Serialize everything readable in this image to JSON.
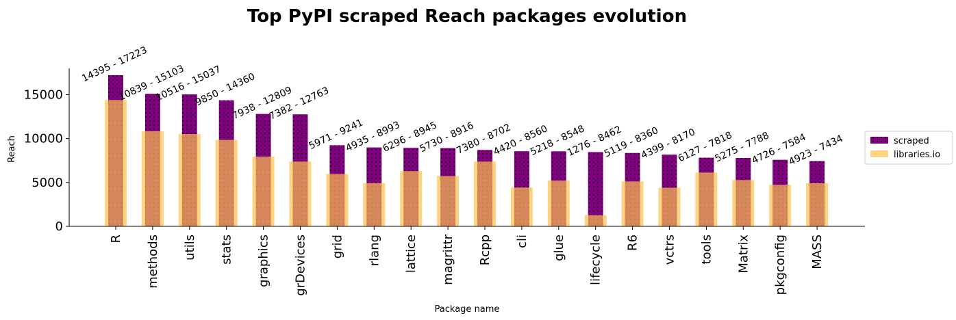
{
  "chart_data": {
    "type": "bar",
    "title": "Top PyPI scraped Reach packages evolution",
    "xlabel": "Package name",
    "ylabel": "Reach",
    "ylim": [
      0,
      18000
    ],
    "yticks": [
      0,
      5000,
      10000,
      15000
    ],
    "grid": false,
    "legend_placement": "right",
    "categories": [
      "R",
      "methods",
      "utils",
      "stats",
      "graphics",
      "grDevices",
      "grid",
      "rlang",
      "lattice",
      "magrittr",
      "Rcpp",
      "cli",
      "glue",
      "lifecycle",
      "R6",
      "vctrs",
      "tools",
      "Matrix",
      "pkgconfig",
      "MASS"
    ],
    "series": [
      {
        "name": "scraped",
        "color": "#800080",
        "values": [
          17223,
          15103,
          15037,
          14360,
          12809,
          12763,
          9241,
          8993,
          8945,
          8916,
          8702,
          8560,
          8548,
          8462,
          8360,
          8170,
          7818,
          7788,
          7584,
          7434
        ]
      },
      {
        "name": "libraries.io",
        "color": "#FFC04D",
        "values": [
          14395,
          10839,
          10516,
          9850,
          7938,
          7382,
          5971,
          4935,
          6296,
          5730,
          7380,
          4420,
          5218,
          1276,
          5119,
          4399,
          6127,
          5275,
          4726,
          4923
        ]
      }
    ],
    "annotations": [
      "14395 - 17223",
      "10839 - 15103",
      "10516 - 15037",
      "9850 - 14360",
      "7938 - 12809",
      "7382 - 12763",
      "5971 - 9241",
      "4935 - 8993",
      "6296 - 8945",
      "5730 - 8916",
      "7380 - 8702",
      "4420 - 8560",
      "5218 - 8548",
      "1276 - 8462",
      "5119 - 8360",
      "4399 - 8170",
      "6127 - 7818",
      "5275 - 7788",
      "4726 - 7584",
      "4923 - 7434"
    ]
  }
}
